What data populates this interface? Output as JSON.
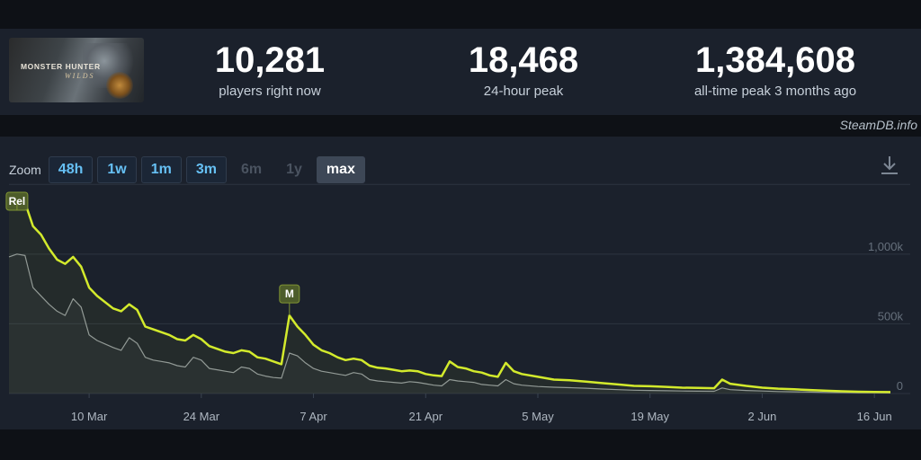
{
  "game": {
    "logo_text": "MONSTER HUNTER",
    "logo_sub": "WILDS"
  },
  "stats": [
    {
      "value": "10,281",
      "label": "players right now"
    },
    {
      "value": "18,468",
      "label": "24-hour peak"
    },
    {
      "value": "1,384,608",
      "label": "all-time peak 3 months ago"
    }
  ],
  "watermark": "SteamDB.info",
  "zoom": {
    "label": "Zoom",
    "buttons": [
      {
        "label": "48h",
        "state": "enabled"
      },
      {
        "label": "1w",
        "state": "enabled"
      },
      {
        "label": "1m",
        "state": "enabled"
      },
      {
        "label": "3m",
        "state": "enabled"
      },
      {
        "label": "6m",
        "state": "disabled"
      },
      {
        "label": "1y",
        "state": "disabled"
      },
      {
        "label": "max",
        "state": "active"
      }
    ]
  },
  "icons": {
    "download": "download-icon"
  },
  "colors": {
    "players": "#d3ea2c",
    "twitch": "#8f969c",
    "background": "#1b212c"
  },
  "chart_data": {
    "type": "line",
    "title": "",
    "xlabel": "",
    "ylabel": "",
    "x_ticks": [
      "10 Mar",
      "24 Mar",
      "7 Apr",
      "21 Apr",
      "5 May",
      "19 May",
      "2 Jun",
      "16 Jun"
    ],
    "y_ticks": [
      "0",
      "500k",
      "1,000k"
    ],
    "ylim": [
      0,
      1500000
    ],
    "grid": true,
    "series": [
      {
        "name": "",
        "color": "#d3ea2c",
        "points": [
          [
            "2025-02-28",
            1320000
          ],
          [
            "2025-03-01",
            1384608
          ],
          [
            "2025-03-02",
            1370000
          ],
          [
            "2025-03-03",
            1200000
          ],
          [
            "2025-03-04",
            1140000
          ],
          [
            "2025-03-05",
            1040000
          ],
          [
            "2025-03-06",
            960000
          ],
          [
            "2025-03-07",
            930000
          ],
          [
            "2025-03-08",
            980000
          ],
          [
            "2025-03-09",
            910000
          ],
          [
            "2025-03-10",
            760000
          ],
          [
            "2025-03-11",
            700000
          ],
          [
            "2025-03-13",
            610000
          ],
          [
            "2025-03-14",
            590000
          ],
          [
            "2025-03-15",
            640000
          ],
          [
            "2025-03-16",
            600000
          ],
          [
            "2025-03-17",
            480000
          ],
          [
            "2025-03-18",
            460000
          ],
          [
            "2025-03-19",
            440000
          ],
          [
            "2025-03-20",
            420000
          ],
          [
            "2025-03-21",
            390000
          ],
          [
            "2025-03-22",
            380000
          ],
          [
            "2025-03-23",
            420000
          ],
          [
            "2025-03-24",
            390000
          ],
          [
            "2025-03-25",
            340000
          ],
          [
            "2025-03-26",
            320000
          ],
          [
            "2025-03-27",
            300000
          ],
          [
            "2025-03-28",
            290000
          ],
          [
            "2025-03-29",
            310000
          ],
          [
            "2025-03-30",
            300000
          ],
          [
            "2025-03-31",
            260000
          ],
          [
            "2025-04-01",
            250000
          ],
          [
            "2025-04-02",
            230000
          ],
          [
            "2025-04-03",
            210000
          ],
          [
            "2025-04-04",
            560000
          ],
          [
            "2025-04-05",
            480000
          ],
          [
            "2025-04-06",
            420000
          ],
          [
            "2025-04-07",
            350000
          ],
          [
            "2025-04-08",
            310000
          ],
          [
            "2025-04-09",
            290000
          ],
          [
            "2025-04-10",
            260000
          ],
          [
            "2025-04-11",
            240000
          ],
          [
            "2025-04-12",
            250000
          ],
          [
            "2025-04-13",
            240000
          ],
          [
            "2025-04-14",
            200000
          ],
          [
            "2025-04-15",
            185000
          ],
          [
            "2025-04-16",
            180000
          ],
          [
            "2025-04-17",
            170000
          ],
          [
            "2025-04-18",
            160000
          ],
          [
            "2025-04-19",
            165000
          ],
          [
            "2025-04-20",
            160000
          ],
          [
            "2025-04-21",
            140000
          ],
          [
            "2025-04-22",
            130000
          ],
          [
            "2025-04-23",
            125000
          ],
          [
            "2025-04-24",
            230000
          ],
          [
            "2025-04-25",
            190000
          ],
          [
            "2025-04-26",
            180000
          ],
          [
            "2025-04-27",
            160000
          ],
          [
            "2025-04-28",
            150000
          ],
          [
            "2025-04-29",
            130000
          ],
          [
            "2025-04-30",
            120000
          ],
          [
            "2025-05-01",
            220000
          ],
          [
            "2025-05-02",
            160000
          ],
          [
            "2025-05-03",
            140000
          ],
          [
            "2025-05-05",
            120000
          ],
          [
            "2025-05-07",
            100000
          ],
          [
            "2025-05-09",
            95000
          ],
          [
            "2025-05-11",
            85000
          ],
          [
            "2025-05-13",
            75000
          ],
          [
            "2025-05-15",
            65000
          ],
          [
            "2025-05-17",
            55000
          ],
          [
            "2025-05-19",
            52000
          ],
          [
            "2025-05-21",
            48000
          ],
          [
            "2025-05-23",
            42000
          ],
          [
            "2025-05-25",
            40000
          ],
          [
            "2025-05-27",
            38000
          ],
          [
            "2025-05-28",
            100000
          ],
          [
            "2025-05-29",
            70000
          ],
          [
            "2025-05-31",
            55000
          ],
          [
            "2025-06-02",
            42000
          ],
          [
            "2025-06-04",
            35000
          ],
          [
            "2025-06-06",
            30000
          ],
          [
            "2025-06-08",
            25000
          ],
          [
            "2025-06-10",
            20000
          ],
          [
            "2025-06-12",
            16000
          ],
          [
            "2025-06-14",
            13000
          ],
          [
            "2025-06-16",
            11000
          ],
          [
            "2025-06-18",
            10281
          ]
        ]
      },
      {
        "name": "",
        "color": "#8f969c",
        "points": [
          [
            "2025-02-28",
            980000
          ],
          [
            "2025-03-01",
            1000000
          ],
          [
            "2025-03-02",
            990000
          ],
          [
            "2025-03-03",
            760000
          ],
          [
            "2025-03-04",
            700000
          ],
          [
            "2025-03-05",
            640000
          ],
          [
            "2025-03-06",
            590000
          ],
          [
            "2025-03-07",
            560000
          ],
          [
            "2025-03-08",
            680000
          ],
          [
            "2025-03-09",
            620000
          ],
          [
            "2025-03-10",
            420000
          ],
          [
            "2025-03-11",
            380000
          ],
          [
            "2025-03-13",
            330000
          ],
          [
            "2025-03-14",
            310000
          ],
          [
            "2025-03-15",
            400000
          ],
          [
            "2025-03-16",
            360000
          ],
          [
            "2025-03-17",
            260000
          ],
          [
            "2025-03-18",
            240000
          ],
          [
            "2025-03-19",
            230000
          ],
          [
            "2025-03-20",
            220000
          ],
          [
            "2025-03-21",
            200000
          ],
          [
            "2025-03-22",
            190000
          ],
          [
            "2025-03-23",
            260000
          ],
          [
            "2025-03-24",
            240000
          ],
          [
            "2025-03-25",
            180000
          ],
          [
            "2025-03-26",
            170000
          ],
          [
            "2025-03-27",
            160000
          ],
          [
            "2025-03-28",
            150000
          ],
          [
            "2025-03-29",
            190000
          ],
          [
            "2025-03-30",
            180000
          ],
          [
            "2025-03-31",
            140000
          ],
          [
            "2025-04-01",
            125000
          ],
          [
            "2025-04-02",
            115000
          ],
          [
            "2025-04-03",
            110000
          ],
          [
            "2025-04-04",
            290000
          ],
          [
            "2025-04-05",
            270000
          ],
          [
            "2025-04-06",
            220000
          ],
          [
            "2025-04-07",
            180000
          ],
          [
            "2025-04-08",
            160000
          ],
          [
            "2025-04-09",
            150000
          ],
          [
            "2025-04-10",
            140000
          ],
          [
            "2025-04-11",
            130000
          ],
          [
            "2025-04-12",
            150000
          ],
          [
            "2025-04-13",
            140000
          ],
          [
            "2025-04-14",
            100000
          ],
          [
            "2025-04-15",
            90000
          ],
          [
            "2025-04-16",
            85000
          ],
          [
            "2025-04-17",
            80000
          ],
          [
            "2025-04-18",
            75000
          ],
          [
            "2025-04-19",
            85000
          ],
          [
            "2025-04-20",
            80000
          ],
          [
            "2025-04-21",
            70000
          ],
          [
            "2025-04-22",
            60000
          ],
          [
            "2025-04-23",
            55000
          ],
          [
            "2025-04-24",
            100000
          ],
          [
            "2025-04-25",
            90000
          ],
          [
            "2025-04-26",
            85000
          ],
          [
            "2025-04-27",
            80000
          ],
          [
            "2025-04-28",
            65000
          ],
          [
            "2025-04-29",
            60000
          ],
          [
            "2025-04-30",
            55000
          ],
          [
            "2025-05-01",
            100000
          ],
          [
            "2025-05-02",
            70000
          ],
          [
            "2025-05-03",
            60000
          ],
          [
            "2025-05-05",
            50000
          ],
          [
            "2025-05-07",
            45000
          ],
          [
            "2025-05-09",
            42000
          ],
          [
            "2025-05-11",
            38000
          ],
          [
            "2025-05-13",
            32000
          ],
          [
            "2025-05-15",
            28000
          ],
          [
            "2025-05-17",
            24000
          ],
          [
            "2025-05-19",
            22000
          ],
          [
            "2025-05-21",
            20000
          ],
          [
            "2025-05-23",
            18000
          ],
          [
            "2025-05-25",
            17000
          ],
          [
            "2025-05-27",
            16000
          ],
          [
            "2025-05-28",
            40000
          ],
          [
            "2025-05-29",
            28000
          ],
          [
            "2025-05-31",
            22000
          ],
          [
            "2025-06-02",
            18000
          ],
          [
            "2025-06-04",
            14000
          ],
          [
            "2025-06-06",
            12000
          ],
          [
            "2025-06-08",
            10000
          ],
          [
            "2025-06-10",
            8000
          ],
          [
            "2025-06-12",
            7000
          ],
          [
            "2025-06-14",
            6000
          ],
          [
            "2025-06-16",
            5000
          ],
          [
            "2025-06-18",
            4500
          ]
        ]
      }
    ],
    "x_tick_dates": [
      "2025-03-10",
      "2025-03-24",
      "2025-04-07",
      "2025-04-21",
      "2025-05-05",
      "2025-05-19",
      "2025-06-02",
      "2025-06-16"
    ],
    "y_tick_values": [
      0,
      500000,
      1000000
    ],
    "xlim": [
      "2025-02-28",
      "2025-06-18"
    ],
    "annotations": [
      {
        "label": "Rel",
        "date": "2025-03-01",
        "value": 1384608
      },
      {
        "label": "M",
        "date": "2025-04-04",
        "value": 560000
      }
    ]
  }
}
